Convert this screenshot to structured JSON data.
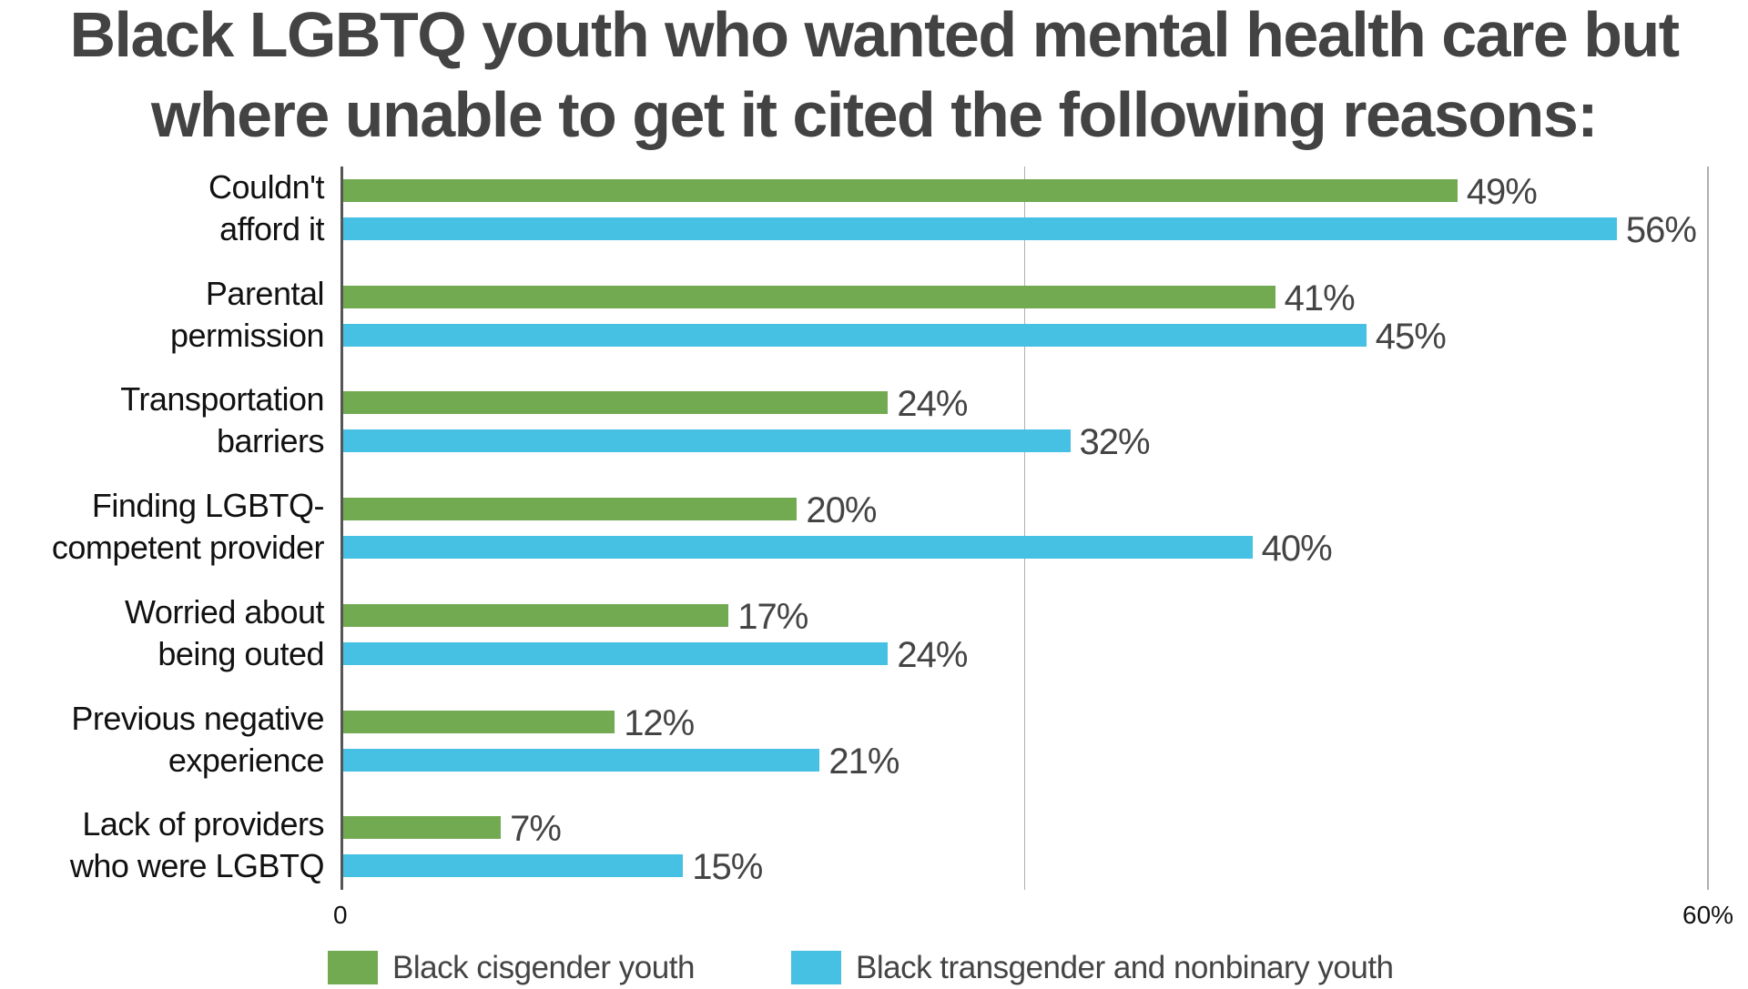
{
  "title": {
    "line1": "Black LGBTQ youth who wanted mental health care but",
    "line2": "where unable to get it cited the following reasons:"
  },
  "colors": {
    "cisgender": "#72AA52",
    "transgender_nonbinary": "#47C1E3",
    "title_text": "#434343",
    "value_text": "#444444",
    "axis": "#555555",
    "gridline": "#B0B0B0"
  },
  "axis": {
    "tick_min_label": "0",
    "tick_max_label": "60%"
  },
  "legend": {
    "items": [
      {
        "label": "Black cisgender youth",
        "color": "#72AA52"
      },
      {
        "label": "Black transgender and nonbinary youth",
        "color": "#47C1E3"
      }
    ]
  },
  "chart_data": {
    "type": "bar",
    "orientation": "horizontal",
    "title": "Black LGBTQ youth who wanted mental health care but where unable to get it cited the following reasons:",
    "xlabel": "",
    "ylabel": "",
    "xlim": [
      0,
      60
    ],
    "x_tick_labels": [
      "0",
      "60%"
    ],
    "grid": {
      "vertical_lines_at": [
        30,
        60
      ]
    },
    "legend_position": "bottom",
    "categories": [
      "Couldn't afford it",
      "Parental permission",
      "Transportation barriers",
      "Finding LGBTQ-competent provider",
      "Worried about being outed",
      "Previous negative experience",
      "Lack of providers who were LGBTQ"
    ],
    "category_lines": [
      [
        "Couldn't",
        "afford it"
      ],
      [
        "Parental",
        "permission"
      ],
      [
        "Transportation",
        "barriers"
      ],
      [
        "Finding LGBTQ-",
        "competent provider"
      ],
      [
        "Worried about",
        "being outed"
      ],
      [
        "Previous negative",
        "experience"
      ],
      [
        "Lack of providers",
        "who were LGBTQ"
      ]
    ],
    "series": [
      {
        "name": "Black cisgender youth",
        "color": "#72AA52",
        "values": [
          49,
          41,
          24,
          20,
          17,
          12,
          7
        ],
        "labels": [
          "49%",
          "41%",
          "24%",
          "20%",
          "17%",
          "12%",
          "7%"
        ]
      },
      {
        "name": "Black transgender and nonbinary youth",
        "color": "#47C1E3",
        "values": [
          56,
          45,
          32,
          40,
          24,
          21,
          15
        ],
        "labels": [
          "56%",
          "45%",
          "32%",
          "40%",
          "24%",
          "21%",
          "15%"
        ]
      }
    ]
  }
}
